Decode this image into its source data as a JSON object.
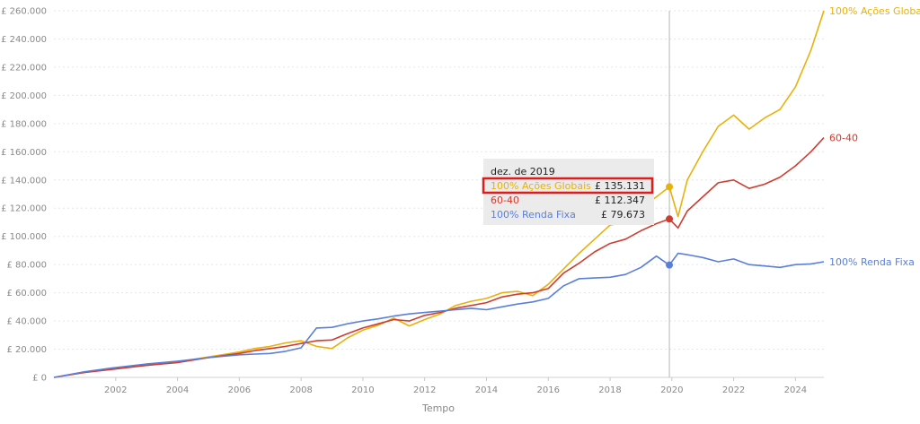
{
  "chart_data": {
    "type": "line",
    "xlabel": "Tempo",
    "ylabel": "",
    "xlim": [
      2000.0,
      2024.92
    ],
    "ylim": [
      0,
      260000
    ],
    "x_ticks": [
      2002,
      2004,
      2006,
      2008,
      2010,
      2012,
      2014,
      2016,
      2018,
      2020,
      2022,
      2024
    ],
    "x_tick_labels": [
      "2002",
      "2004",
      "2006",
      "2008",
      "2010",
      "2012",
      "2014",
      "2016",
      "2018",
      "2020",
      "2022",
      "2024"
    ],
    "y_ticks": [
      0,
      20000,
      40000,
      60000,
      80000,
      100000,
      120000,
      140000,
      160000,
      180000,
      200000,
      220000,
      240000,
      260000
    ],
    "y_tick_labels": [
      "£ 0",
      "£ 20.000",
      "£ 40.000",
      "£ 60.000",
      "£ 80.000",
      "£ 100.000",
      "£ 120.000",
      "£ 140.000",
      "£ 160.000",
      "£ 180.000",
      "£ 200.000",
      "£ 220.000",
      "£ 240.000",
      "£ 260.000"
    ],
    "grid": "horizontal-dashed",
    "crosshair_x": 2019.92,
    "series": [
      {
        "name": "100% Ações Globais",
        "color": "#e8b10b",
        "x": [
          2000.0,
          2001.0,
          2002.0,
          2003.0,
          2004.0,
          2005.0,
          2006.0,
          2006.5,
          2007.0,
          2007.5,
          2008.0,
          2008.5,
          2009.0,
          2009.5,
          2010.0,
          2010.5,
          2011.0,
          2011.5,
          2012.0,
          2012.5,
          2013.0,
          2013.5,
          2014.0,
          2014.5,
          2015.0,
          2015.5,
          2016.0,
          2016.5,
          2017.0,
          2017.5,
          2018.0,
          2018.5,
          2019.0,
          2019.5,
          2019.92,
          2020.2,
          2020.5,
          2021.0,
          2021.5,
          2022.0,
          2022.5,
          2023.0,
          2023.5,
          2024.0,
          2024.5,
          2024.92
        ],
        "y": [
          0,
          3500,
          6500,
          8500,
          11000,
          14500,
          18000,
          20500,
          22000,
          24500,
          26000,
          22000,
          20500,
          28000,
          33500,
          37000,
          42000,
          36500,
          41000,
          45000,
          51000,
          54000,
          56000,
          60000,
          61000,
          58000,
          66000,
          77000,
          88000,
          98000,
          108000,
          110000,
          120000,
          128000,
          135131,
          114000,
          140000,
          160000,
          178000,
          186000,
          176000,
          184000,
          190000,
          206000,
          232000,
          260000
        ]
      },
      {
        "name": "60-40",
        "color": "#cf3c30",
        "x": [
          2000.0,
          2001.0,
          2002.0,
          2003.0,
          2004.0,
          2005.0,
          2006.0,
          2006.5,
          2007.0,
          2007.5,
          2008.0,
          2008.5,
          2009.0,
          2009.5,
          2010.0,
          2010.5,
          2011.0,
          2011.5,
          2012.0,
          2012.5,
          2013.0,
          2013.5,
          2014.0,
          2014.5,
          2015.0,
          2015.5,
          2016.0,
          2016.5,
          2017.0,
          2017.5,
          2018.0,
          2018.5,
          2019.0,
          2019.5,
          2019.92,
          2020.2,
          2020.5,
          2021.0,
          2021.5,
          2022.0,
          2022.5,
          2023.0,
          2023.5,
          2024.0,
          2024.5,
          2024.92
        ],
        "y": [
          0,
          3500,
          6000,
          8500,
          10500,
          14000,
          17000,
          19000,
          20500,
          22000,
          24000,
          26000,
          26500,
          31000,
          35000,
          38000,
          41000,
          40000,
          44000,
          46000,
          49000,
          51000,
          53000,
          57000,
          59000,
          60000,
          63000,
          74000,
          81000,
          89000,
          95000,
          98000,
          104000,
          109000,
          112347,
          106000,
          118000,
          128000,
          138000,
          140000,
          134000,
          137000,
          142000,
          150000,
          160000,
          170000
        ]
      },
      {
        "name": "100% Renda Fixa",
        "color": "#5a7fdb",
        "x": [
          2000.0,
          2001.0,
          2002.0,
          2003.0,
          2004.0,
          2005.0,
          2006.0,
          2006.5,
          2007.0,
          2007.5,
          2008.0,
          2008.5,
          2009.0,
          2009.5,
          2010.0,
          2010.5,
          2011.0,
          2011.5,
          2012.0,
          2012.5,
          2013.0,
          2013.5,
          2014.0,
          2014.5,
          2015.0,
          2015.5,
          2016.0,
          2016.5,
          2017.0,
          2017.5,
          2018.0,
          2018.5,
          2019.0,
          2019.5,
          2019.92,
          2020.2,
          2020.5,
          2021.0,
          2021.5,
          2022.0,
          2022.5,
          2023.0,
          2023.5,
          2024.0,
          2024.5,
          2024.92
        ],
        "y": [
          0,
          4000,
          7000,
          9500,
          11500,
          14000,
          16000,
          16500,
          17000,
          18500,
          21000,
          35000,
          35500,
          38000,
          40000,
          41500,
          43500,
          45000,
          46000,
          47000,
          48000,
          49000,
          48000,
          50000,
          52000,
          53500,
          56000,
          65000,
          70000,
          70500,
          71000,
          73000,
          78000,
          86000,
          79673,
          88000,
          87000,
          85000,
          82000,
          84000,
          80000,
          79000,
          78000,
          80000,
          80500,
          82000
        ]
      }
    ],
    "series_end_labels": [
      "100% Ações Globais",
      "60-40",
      "100% Renda Fixa"
    ],
    "tooltip": {
      "title": "dez. de 2019",
      "rows": [
        {
          "label": "100% Ações Globais",
          "value": "£ 135.131",
          "color": "#e8b10b",
          "highlighted": true
        },
        {
          "label": "60-40",
          "value": "£ 112.347",
          "color": "#cf3c30",
          "highlighted": false
        },
        {
          "label": "100% Renda Fixa",
          "value": "£ 79.673",
          "color": "#5a7fdb",
          "highlighted": false
        }
      ]
    },
    "annotation": {
      "highlight_box_color": "#e01b1b"
    }
  }
}
